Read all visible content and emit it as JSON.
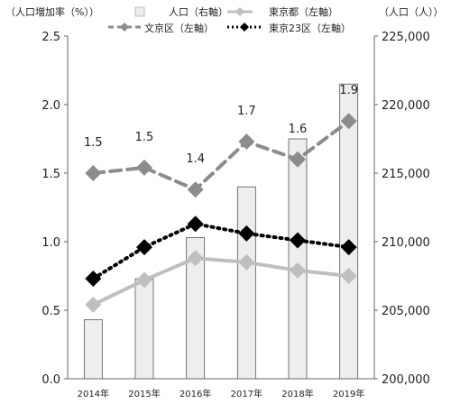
{
  "chart_data": {
    "type": "bar+line",
    "categories": [
      "2014年",
      "2015年",
      "2016年",
      "2017年",
      "2018年",
      "2019年"
    ],
    "left_axis": {
      "label": "（人口増加率（%））",
      "ylim": [
        0.0,
        2.5
      ],
      "ticks": [
        "0.0",
        "0.5",
        "1.0",
        "1.5",
        "2.0",
        "2.5"
      ]
    },
    "right_axis": {
      "label": "（人口（人））",
      "ylim": [
        200000,
        225000
      ],
      "ticks": [
        "200,000",
        "205,000",
        "210,000",
        "215,000",
        "220,000",
        "225,000"
      ]
    },
    "series": [
      {
        "name": "人口（右軸）",
        "kind": "bar",
        "axis": "right",
        "color": "#eeeeee",
        "values": [
          204300,
          207300,
          210300,
          214000,
          217500,
          221500
        ]
      },
      {
        "name": "東京都（左軸）",
        "kind": "line",
        "axis": "left",
        "style": "solid",
        "color": "#bfbfbf",
        "values": [
          0.54,
          0.72,
          0.88,
          0.85,
          0.79,
          0.75
        ]
      },
      {
        "name": "文京区（左軸）",
        "kind": "line",
        "axis": "left",
        "style": "dashed",
        "color": "#8c8c8c",
        "values": [
          1.5,
          1.54,
          1.38,
          1.73,
          1.6,
          1.88
        ],
        "labels": [
          "1.5",
          "1.5",
          "1.4",
          "1.7",
          "1.6",
          "1.9"
        ]
      },
      {
        "name": "東京23区（左軸）",
        "kind": "line",
        "axis": "left",
        "style": "dotted",
        "color": "#000000",
        "values": [
          0.73,
          0.96,
          1.13,
          1.06,
          1.01,
          0.96
        ]
      }
    ],
    "grid": false,
    "legend": "top"
  }
}
